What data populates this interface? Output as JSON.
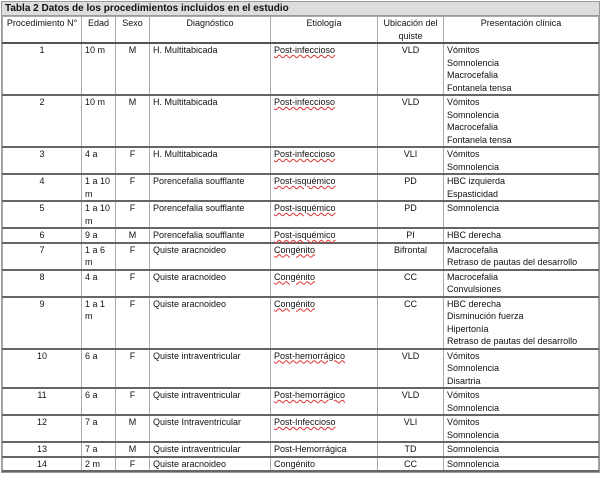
{
  "title": "Tabla 2   Datos de los procedimientos incluidos en el estudio",
  "headers": [
    "Procedimiento N°",
    "Edad",
    "Sexo",
    "Diagnóstico",
    "Etiología",
    "Ubicación del quiste",
    "Presentación clínica"
  ],
  "rows": [
    {
      "n": "1",
      "edad": "10 m",
      "sexo": "M",
      "diag": "H. Multitabicada",
      "etio": "Post-infeccioso",
      "ubic": "VLD",
      "pres": [
        "Vómitos",
        "Somnolencia",
        "Macrocefalia",
        "Fontanela tensa"
      ]
    },
    {
      "n": "2",
      "edad": "10 m",
      "sexo": "M",
      "diag": "H. Multitabicada",
      "etio": "Post-infeccioso",
      "ubic": "VLD",
      "pres": [
        "Vómitos",
        "Somnolencia",
        "Macrocefalia",
        "Fontanela tensa"
      ]
    },
    {
      "n": "3",
      "edad": "4 a",
      "sexo": "F",
      "diag": "H. Multitabicada",
      "etio": "Post-infeccioso",
      "ubic": "VLI",
      "pres": [
        "Vómitos",
        "Somnolencia"
      ]
    },
    {
      "n": "4",
      "edad": "1 a 10 m",
      "sexo": "F",
      "diag": "Porencefalia soufflante",
      "etio": "Post-isquémico",
      "ubic": "PD",
      "pres": [
        "HBC izquierda",
        "Espasticidad"
      ]
    },
    {
      "n": "5",
      "edad": "1 a 10 m",
      "sexo": "F",
      "diag": "Porencefalia soufflante",
      "etio": "Post-isquémico",
      "ubic": "PD",
      "pres": [
        "Somnolencia"
      ]
    },
    {
      "n": "6",
      "edad": "9 a",
      "sexo": "M",
      "diag": "Porencefalia soufflante",
      "etio": "Post-isquémico",
      "ubic": "PI",
      "pres": [
        "HBC derecha"
      ]
    },
    {
      "n": "7",
      "edad": "1 a 6 m",
      "sexo": "F",
      "diag": "Quiste aracnoideo",
      "etio": "Congénito",
      "ubic": "Bifrontal",
      "pres": [
        "Macrocefalia",
        "Retraso de pautas del desarrollo"
      ]
    },
    {
      "n": "8",
      "edad": "4 a",
      "sexo": "F",
      "diag": "Quiste aracnoideo",
      "etio": "Congénito",
      "ubic": "CC",
      "pres": [
        "Macrocefalia",
        "Convulsiones"
      ]
    },
    {
      "n": "9",
      "edad": "1 a 1 m",
      "sexo": "F",
      "diag": "Quiste aracnoideo",
      "etio": "Congénito",
      "ubic": "CC",
      "pres": [
        "HBC derecha",
        "Disminución fuerza",
        "Hipertonía",
        "Retraso de pautas del desarrollo"
      ]
    },
    {
      "n": "10",
      "edad": "6 a",
      "sexo": "F",
      "diag": "Quiste intraventricular",
      "etio": "Post-hemorrágico",
      "ubic": "VLD",
      "pres": [
        "Vómitos",
        "Somnolencia",
        "Disartria"
      ]
    },
    {
      "n": "11",
      "edad": "6 a",
      "sexo": "F",
      "diag": "Quiste intraventricular",
      "etio": "Post-hemorrágico",
      "ubic": "VLD",
      "pres": [
        "Vómitos",
        "Somnolencia"
      ]
    },
    {
      "n": "12",
      "edad": "7 a",
      "sexo": "M",
      "diag": "Quiste Intraventricular",
      "etio": "Post-Infeccioso",
      "ubic": "VLI",
      "pres": [
        "Vómitos",
        "Somnolencia"
      ]
    },
    {
      "n": "13",
      "edad": "7 a",
      "sexo": "M",
      "diag": "Quiste intraventricular",
      "etio": "Post-Hemorrágica",
      "ubic": "TD",
      "pres": [
        "Somnolencia"
      ]
    },
    {
      "n": "14",
      "edad": "2 m",
      "sexo": "F",
      "diag": "Quiste aracnoideo",
      "etio": "Congénito",
      "ubic": "CC",
      "pres": [
        "Somnolencia"
      ]
    }
  ]
}
